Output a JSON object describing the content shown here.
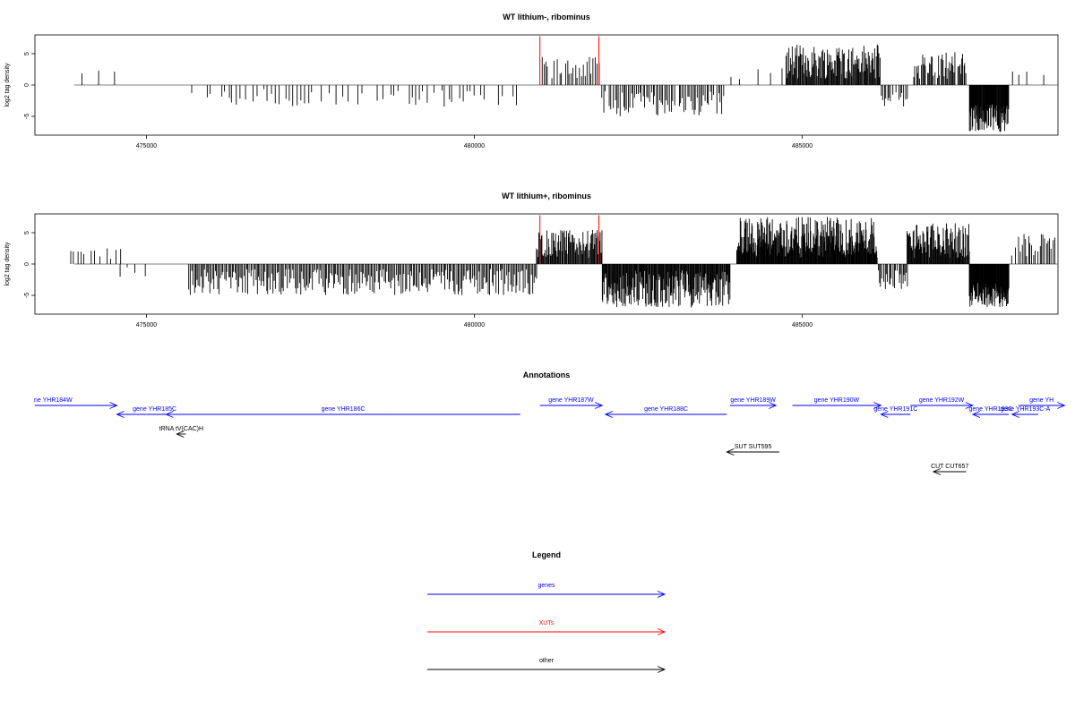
{
  "chart_data": [
    {
      "type": "bar",
      "title": "WT lithium-, ribominus",
      "ylabel": "log2 tag density",
      "xlim": [
        473300,
        488900
      ],
      "ylim": [
        -8,
        8
      ],
      "xticks": [
        475000,
        480000,
        485000
      ],
      "xtick_labels": [
        "475000",
        "480000",
        "485000"
      ],
      "yticks": [
        5,
        0,
        -5
      ],
      "ytick_labels": [
        "5",
        "0",
        "-5"
      ],
      "region_markers": [
        481000,
        481900
      ],
      "marker_color": "#ff0000",
      "bar_color": "#000000",
      "segments": [
        {
          "from": 473900,
          "to": 474600,
          "spacing": 90,
          "min": 0.8,
          "max": 2.5,
          "sign": 1,
          "fill": 0.5
        },
        {
          "from": 475700,
          "to": 480700,
          "spacing": 55,
          "min": 0.6,
          "max": 3.5,
          "sign": -1,
          "fill": 0.6
        },
        {
          "from": 481000,
          "to": 481900,
          "spacing": 30,
          "min": 1.0,
          "max": 4.5,
          "sign": 1,
          "fill": 0.85
        },
        {
          "from": 481950,
          "to": 483800,
          "spacing": 25,
          "min": 1.0,
          "max": 5.0,
          "sign": -1,
          "fill": 0.95
        },
        {
          "from": 483800,
          "to": 484700,
          "spacing": 60,
          "min": 0.5,
          "max": 3.0,
          "sign": 1,
          "fill": 0.35
        },
        {
          "from": 484750,
          "to": 486200,
          "spacing": 12,
          "min": 1.0,
          "max": 6.5,
          "sign": 1,
          "fill": 1.0
        },
        {
          "from": 486200,
          "to": 486600,
          "spacing": 25,
          "min": 1.0,
          "max": 3.5,
          "sign": -1,
          "fill": 0.9
        },
        {
          "from": 486700,
          "to": 487500,
          "spacing": 15,
          "min": 1.0,
          "max": 5.5,
          "sign": 1,
          "fill": 0.9
        },
        {
          "from": 487550,
          "to": 488150,
          "spacing": 7,
          "min": 3.0,
          "max": 7.5,
          "sign": -1,
          "fill": 1.0
        },
        {
          "from": 488200,
          "to": 488850,
          "spacing": 60,
          "min": 0.8,
          "max": 2.5,
          "sign": 1,
          "fill": 0.6
        }
      ]
    },
    {
      "type": "bar",
      "title": "WT lithium+, ribominus",
      "ylabel": "log2 tag density",
      "xlim": [
        473300,
        488900
      ],
      "ylim": [
        -8,
        8
      ],
      "xticks": [
        475000,
        480000,
        485000
      ],
      "xtick_labels": [
        "475000",
        "480000",
        "485000"
      ],
      "yticks": [
        5,
        0,
        -5
      ],
      "ytick_labels": [
        "5",
        "0",
        "-5"
      ],
      "region_markers": [
        481000,
        481900
      ],
      "marker_color": "#ff0000",
      "bar_color": "#000000",
      "segments": [
        {
          "from": 473850,
          "to": 474600,
          "spacing": 50,
          "min": 0.8,
          "max": 2.5,
          "sign": 1,
          "fill": 0.8
        },
        {
          "from": 474600,
          "to": 475000,
          "spacing": 120,
          "min": 0.5,
          "max": 2.5,
          "sign": -1,
          "fill": 0.4
        },
        {
          "from": 475650,
          "to": 480950,
          "spacing": 20,
          "min": 0.8,
          "max": 5.0,
          "sign": -1,
          "fill": 1.0
        },
        {
          "from": 480950,
          "to": 481950,
          "spacing": 12,
          "min": 1.0,
          "max": 5.5,
          "sign": 1,
          "fill": 1.0
        },
        {
          "from": 481950,
          "to": 483900,
          "spacing": 10,
          "min": 1.0,
          "max": 7.0,
          "sign": -1,
          "fill": 1.0
        },
        {
          "from": 484000,
          "to": 486150,
          "spacing": 8,
          "min": 1.0,
          "max": 7.5,
          "sign": 1,
          "fill": 1.0
        },
        {
          "from": 486150,
          "to": 486600,
          "spacing": 15,
          "min": 1.0,
          "max": 4.0,
          "sign": -1,
          "fill": 0.9
        },
        {
          "from": 486600,
          "to": 487550,
          "spacing": 10,
          "min": 1.0,
          "max": 6.5,
          "sign": 1,
          "fill": 1.0
        },
        {
          "from": 487550,
          "to": 488150,
          "spacing": 6,
          "min": 3.0,
          "max": 7.0,
          "sign": -1,
          "fill": 1.0
        },
        {
          "from": 488200,
          "to": 488850,
          "spacing": 25,
          "min": 1.0,
          "max": 5.0,
          "sign": 1,
          "fill": 0.9
        }
      ]
    }
  ],
  "annotations": {
    "title": "Annotations",
    "features": [
      {
        "label": "ne YHR184W",
        "type": "gene",
        "strand": "+",
        "start": 473300,
        "end": 474550,
        "row": 0
      },
      {
        "label": "gene YHR185C",
        "type": "gene",
        "strand": "-",
        "start": 474550,
        "end": 475700,
        "row": 1
      },
      {
        "label": "gene YHR186C",
        "type": "gene",
        "strand": "-",
        "start": 475300,
        "end": 480700,
        "row": 1
      },
      {
        "label": "tRNA tV(CAC)H",
        "type": "other",
        "strand": "-",
        "start": 475500,
        "end": 475600,
        "row": 2
      },
      {
        "label": "gene YHR187W",
        "type": "gene",
        "strand": "+",
        "start": 481000,
        "end": 481950,
        "row": 0
      },
      {
        "label": "gene YHR188C",
        "type": "gene",
        "strand": "-",
        "start": 482000,
        "end": 483850,
        "row": 1
      },
      {
        "label": "gene YHR189W",
        "type": "gene",
        "strand": "+",
        "start": 483900,
        "end": 484600,
        "row": 0
      },
      {
        "label": "SUT SUT595",
        "type": "other",
        "strand": "-",
        "start": 483850,
        "end": 484650,
        "row": 3
      },
      {
        "label": "gene YHR190W",
        "type": "gene",
        "strand": "+",
        "start": 484850,
        "end": 486200,
        "row": 0
      },
      {
        "label": "gene YHR191C",
        "type": "gene",
        "strand": "-",
        "start": 486200,
        "end": 486650,
        "row": 1
      },
      {
        "label": "gene YHR192W",
        "type": "gene",
        "strand": "+",
        "start": 486650,
        "end": 487600,
        "row": 0
      },
      {
        "label": "gene YHR193C",
        "type": "gene",
        "strand": "-",
        "start": 487600,
        "end": 488150,
        "row": 1
      },
      {
        "label": "gene YHR193C-A",
        "type": "gene",
        "strand": "-",
        "start": 488200,
        "end": 488600,
        "row": 1
      },
      {
        "label": "gene YH",
        "type": "gene",
        "strand": "+",
        "start": 488300,
        "end": 489000,
        "row": 0
      },
      {
        "label": "CUT CUT657",
        "type": "other",
        "strand": "-",
        "start": 487000,
        "end": 487500,
        "row": 4
      }
    ]
  },
  "legend": {
    "title": "Legend",
    "items": [
      {
        "label": "genes",
        "color": "#0000ff"
      },
      {
        "label": "XUTs",
        "color": "#ff0000"
      },
      {
        "label": "other",
        "color": "#000000"
      }
    ]
  },
  "colors": {
    "gene": "#0000ff",
    "xut": "#ff0000",
    "other": "#000000",
    "axis": "#000000",
    "baseline": "#555555"
  }
}
